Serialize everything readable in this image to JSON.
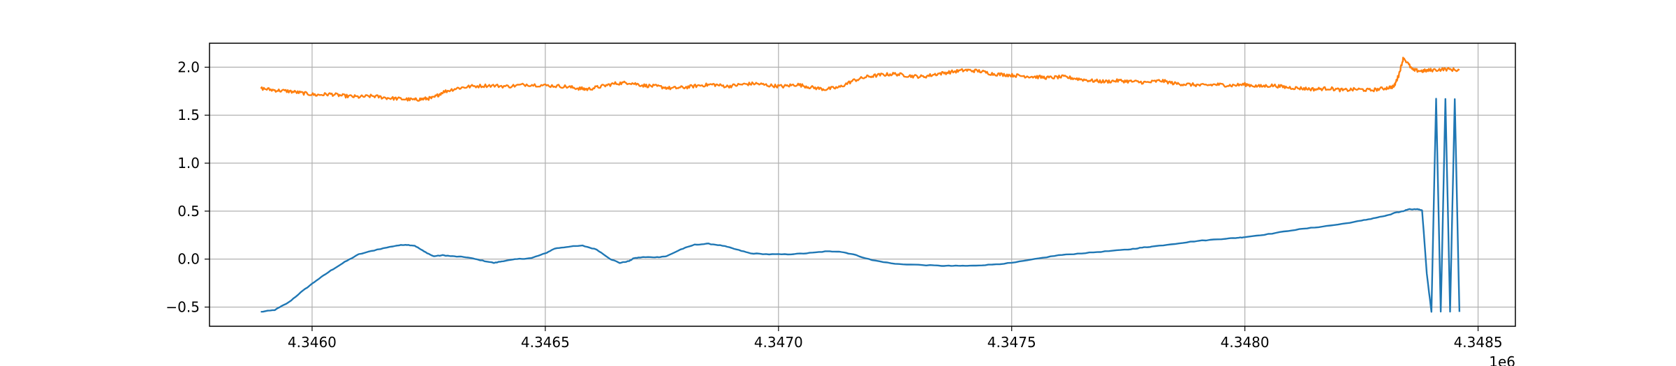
{
  "chart_data": {
    "type": "line",
    "title": "",
    "xlabel": "",
    "ylabel": "",
    "grid": true,
    "x_offset_label": "1e6",
    "xlim": [
      4.34578,
      4.34858
    ],
    "ylim": [
      -0.7,
      2.25
    ],
    "x_ticks": [
      {
        "value": 4.346,
        "label": "4.3460"
      },
      {
        "value": 4.3465,
        "label": "4.3465"
      },
      {
        "value": 4.347,
        "label": "4.3470"
      },
      {
        "value": 4.3475,
        "label": "4.3475"
      },
      {
        "value": 4.348,
        "label": "4.3480"
      },
      {
        "value": 4.3485,
        "label": "4.3485"
      }
    ],
    "y_ticks": [
      {
        "value": -0.5,
        "label": "−0.5"
      },
      {
        "value": 0.0,
        "label": "0.0"
      },
      {
        "value": 0.5,
        "label": "0.5"
      },
      {
        "value": 1.0,
        "label": "1.0"
      },
      {
        "value": 1.5,
        "label": "1.5"
      },
      {
        "value": 2.0,
        "label": "2.0"
      }
    ],
    "series": [
      {
        "color": "#1f77b4",
        "x": [
          4.34589,
          4.34592,
          4.34595,
          4.34598,
          4.34601,
          4.34604,
          4.34607,
          4.3461,
          4.34614,
          4.34618,
          4.3462,
          4.34622,
          4.34624,
          4.34626,
          4.34628,
          4.3463,
          4.34633,
          4.34636,
          4.34639,
          4.34641,
          4.34644,
          4.34647,
          4.3465,
          4.34652,
          4.34655,
          4.34658,
          4.34661,
          4.34664,
          4.34666,
          4.34668,
          4.34669,
          4.34671,
          4.34674,
          4.34676,
          4.34679,
          4.34682,
          4.34685,
          4.34688,
          4.34691,
          4.34694,
          4.34698,
          4.34702,
          4.34706,
          4.3471,
          4.34713,
          4.34716,
          4.3472,
          4.34725,
          4.3473,
          4.34735,
          4.34738,
          4.34741,
          4.34745,
          4.3475,
          4.34755,
          4.3476,
          4.34765,
          4.3477,
          4.34775,
          4.34778,
          4.3478,
          4.34785,
          4.3479,
          4.34795,
          4.34798,
          4.348,
          4.34805,
          4.3481,
          4.34815,
          4.3482,
          4.34825,
          4.34828,
          4.34831,
          4.34832,
          4.34834,
          4.34835,
          4.34837,
          4.34838,
          4.34839,
          4.3484,
          4.34841,
          4.34842,
          4.34843,
          4.34844,
          4.34845,
          4.34846
        ],
        "y": [
          -0.55,
          -0.53,
          -0.45,
          -0.33,
          -0.22,
          -0.12,
          -0.03,
          0.05,
          0.1,
          0.14,
          0.15,
          0.14,
          0.08,
          0.03,
          0.04,
          0.03,
          0.02,
          -0.01,
          -0.04,
          -0.02,
          0.0,
          0.01,
          0.06,
          0.11,
          0.13,
          0.14,
          0.1,
          0.0,
          -0.04,
          -0.02,
          0.01,
          0.02,
          0.02,
          0.03,
          0.1,
          0.15,
          0.16,
          0.14,
          0.1,
          0.06,
          0.05,
          0.05,
          0.06,
          0.08,
          0.08,
          0.05,
          -0.01,
          -0.05,
          -0.06,
          -0.07,
          -0.07,
          -0.07,
          -0.06,
          -0.04,
          0.0,
          0.04,
          0.06,
          0.08,
          0.1,
          0.12,
          0.13,
          0.16,
          0.19,
          0.21,
          0.22,
          0.23,
          0.26,
          0.3,
          0.33,
          0.36,
          0.4,
          0.43,
          0.46,
          0.48,
          0.5,
          0.52,
          0.52,
          0.51,
          -0.15,
          -0.55,
          1.67,
          -0.55,
          1.67,
          -0.55,
          1.67,
          -0.55
        ]
      },
      {
        "color": "#ff7f0e",
        "x": [
          4.34589,
          4.34592,
          4.34595,
          4.34598,
          4.34601,
          4.34604,
          4.34607,
          4.3461,
          4.34613,
          4.34616,
          4.34619,
          4.34622,
          4.34624,
          4.34626,
          4.34628,
          4.34631,
          4.34634,
          4.34638,
          4.34642,
          4.34646,
          4.3465,
          4.34654,
          4.34657,
          4.34659,
          4.34662,
          4.34665,
          4.34668,
          4.34671,
          4.34674,
          4.34677,
          4.3468,
          4.34683,
          4.34686,
          4.34689,
          4.34692,
          4.34695,
          4.34698,
          4.34701,
          4.34704,
          4.34707,
          4.3471,
          4.34713,
          4.34716,
          4.34719,
          4.34722,
          4.34725,
          4.34728,
          4.34731,
          4.34734,
          4.34737,
          4.3474,
          4.34743,
          4.34746,
          4.34749,
          4.34752,
          4.34755,
          4.34758,
          4.34761,
          4.34764,
          4.34767,
          4.3477,
          4.34773,
          4.34776,
          4.34779,
          4.34782,
          4.34785,
          4.34788,
          4.34791,
          4.34794,
          4.34797,
          4.348,
          4.34803,
          4.34806,
          4.34809,
          4.34812,
          4.34815,
          4.34818,
          4.34821,
          4.34824,
          4.34827,
          4.3483,
          4.34832,
          4.34833,
          4.34834,
          4.34836,
          4.34838,
          4.3484,
          4.34843,
          4.34846
        ],
        "y": [
          1.78,
          1.76,
          1.75,
          1.73,
          1.71,
          1.72,
          1.7,
          1.69,
          1.7,
          1.68,
          1.67,
          1.66,
          1.67,
          1.68,
          1.74,
          1.78,
          1.8,
          1.81,
          1.8,
          1.82,
          1.81,
          1.8,
          1.78,
          1.77,
          1.8,
          1.83,
          1.84,
          1.81,
          1.8,
          1.78,
          1.79,
          1.81,
          1.82,
          1.8,
          1.82,
          1.83,
          1.81,
          1.8,
          1.82,
          1.79,
          1.77,
          1.79,
          1.86,
          1.9,
          1.92,
          1.93,
          1.91,
          1.9,
          1.93,
          1.95,
          1.97,
          1.96,
          1.93,
          1.92,
          1.91,
          1.9,
          1.89,
          1.9,
          1.88,
          1.86,
          1.85,
          1.86,
          1.85,
          1.84,
          1.86,
          1.83,
          1.82,
          1.81,
          1.82,
          1.81,
          1.82,
          1.8,
          1.81,
          1.79,
          1.78,
          1.77,
          1.78,
          1.76,
          1.77,
          1.76,
          1.78,
          1.8,
          1.92,
          2.1,
          1.97,
          1.96,
          1.97,
          1.98,
          1.97
        ]
      }
    ]
  }
}
